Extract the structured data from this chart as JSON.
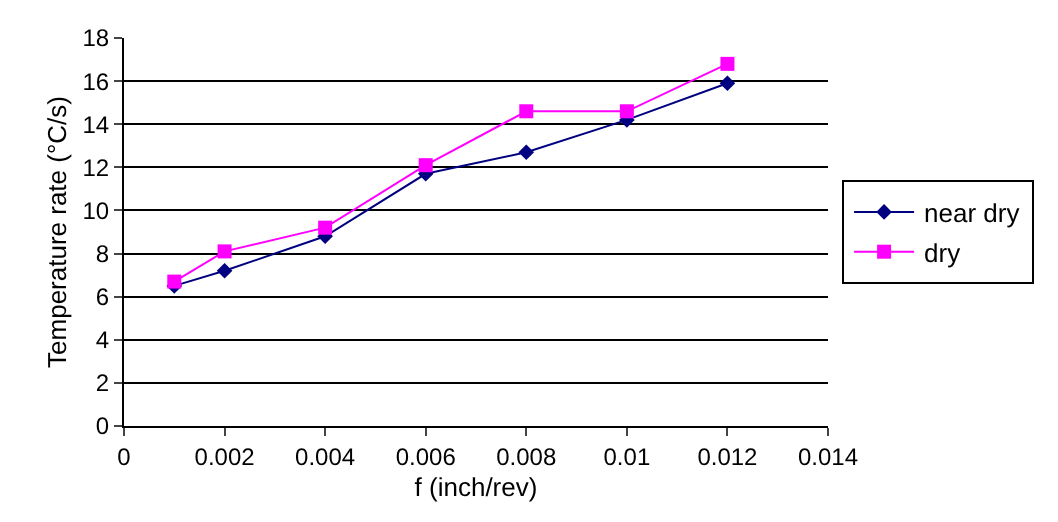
{
  "chart_data": {
    "type": "line",
    "xlabel": "f (inch/rev)",
    "ylabel": "Temperature rate (°C/s)",
    "x": [
      0.001,
      0.002,
      0.004,
      0.006,
      0.008,
      0.01,
      0.012
    ],
    "series": [
      {
        "name": "near dry",
        "color": "#000080",
        "values": [
          6.5,
          7.2,
          8.8,
          11.7,
          12.7,
          14.2,
          15.9
        ],
        "marker": "diamond"
      },
      {
        "name": "dry",
        "color": "#ff00ff",
        "values": [
          6.7,
          8.1,
          9.2,
          12.1,
          14.6,
          14.6,
          16.8
        ],
        "marker": "square"
      }
    ],
    "xlim": [
      0,
      0.014
    ],
    "xticks": [
      0,
      0.002,
      0.004,
      0.006,
      0.008,
      0.01,
      0.012,
      0.014
    ],
    "ylim": [
      0,
      18
    ],
    "yticks": [
      0,
      2,
      4,
      6,
      8,
      10,
      12,
      14,
      16,
      18
    ],
    "grid": "y",
    "legend": "right",
    "line_style": "solid"
  }
}
